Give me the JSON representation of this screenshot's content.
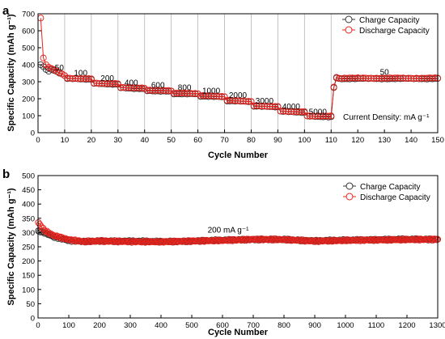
{
  "panels": [
    {
      "label": "a",
      "xlabel": "Cycle Number",
      "ylabel": "Specific Capacity (mAh g⁻¹)",
      "note": "Current Density: mA g⁻¹",
      "legend": [
        "Charge Capacity",
        "Discharge Capacity"
      ]
    },
    {
      "label": "b",
      "xlabel": "Cycle Number",
      "ylabel": "Specific Capacity (mAh g⁻¹)",
      "note": "200 mA g⁻¹",
      "legend": [
        "Charge Capacity",
        "Discharge Capacity"
      ]
    }
  ],
  "colors": {
    "charge": "#333333",
    "discharge": "#e8201a",
    "separator": "#b4b4b4"
  },
  "chart_data": [
    {
      "type": "scatter",
      "xlabel": "Cycle Number",
      "ylabel": "Specific Capacity (mAh g⁻¹)",
      "xlim": [
        0,
        150
      ],
      "ylim": [
        0,
        700
      ],
      "xticks": [
        0,
        10,
        20,
        30,
        40,
        50,
        60,
        70,
        80,
        90,
        100,
        110,
        120,
        130,
        140,
        150
      ],
      "yticks": [
        0,
        100,
        200,
        300,
        400,
        500,
        600,
        700
      ],
      "grid": "vertical separators at every 10 cycles",
      "legend_position": "top-right",
      "annotations": [
        {
          "text": "50",
          "x": 8,
          "y": 366
        },
        {
          "text": "100",
          "x": 16,
          "y": 335
        },
        {
          "text": "200",
          "x": 26,
          "y": 305
        },
        {
          "text": "400",
          "x": 35,
          "y": 278
        },
        {
          "text": "600",
          "x": 45,
          "y": 265
        },
        {
          "text": "800",
          "x": 55,
          "y": 250
        },
        {
          "text": "1000",
          "x": 65,
          "y": 232
        },
        {
          "text": "2000",
          "x": 75,
          "y": 205
        },
        {
          "text": "3000",
          "x": 85,
          "y": 172
        },
        {
          "text": "4000",
          "x": 95,
          "y": 138
        },
        {
          "text": "5000",
          "x": 105,
          "y": 108
        },
        {
          "text": "50",
          "x": 130,
          "y": 340
        }
      ],
      "rate_segments": [
        {
          "current_density": 50,
          "cycles": [
            1,
            10
          ],
          "start": 400,
          "end": 338
        },
        {
          "current_density": 100,
          "cycles": [
            11,
            20
          ],
          "start": 318,
          "end": 315
        },
        {
          "current_density": 200,
          "cycles": [
            21,
            30
          ],
          "start": 290,
          "end": 285
        },
        {
          "current_density": 400,
          "cycles": [
            31,
            40
          ],
          "start": 265,
          "end": 258
        },
        {
          "current_density": 600,
          "cycles": [
            41,
            50
          ],
          "start": 248,
          "end": 243
        },
        {
          "current_density": 800,
          "cycles": [
            51,
            60
          ],
          "start": 230,
          "end": 227
        },
        {
          "current_density": 1000,
          "cycles": [
            61,
            70
          ],
          "start": 215,
          "end": 210
        },
        {
          "current_density": 2000,
          "cycles": [
            71,
            80
          ],
          "start": 187,
          "end": 182
        },
        {
          "current_density": 3000,
          "cycles": [
            81,
            90
          ],
          "start": 155,
          "end": 152
        },
        {
          "current_density": 4000,
          "cycles": [
            91,
            100
          ],
          "start": 125,
          "end": 120
        },
        {
          "current_density": 5000,
          "cycles": [
            101,
            110
          ],
          "start": 97,
          "end": 94
        },
        {
          "current_density": 50,
          "cycles": [
            111,
            150
          ],
          "start": 318,
          "end": 318
        }
      ],
      "first_cycles_discharge": [
        {
          "x": 1,
          "y": 675
        },
        {
          "x": 2,
          "y": 440
        },
        {
          "x": 3,
          "y": 400
        },
        {
          "x": 4,
          "y": 385
        }
      ],
      "first_cycles_charge": [
        {
          "x": 1,
          "y": 400
        },
        {
          "x": 2,
          "y": 388
        },
        {
          "x": 3,
          "y": 372
        },
        {
          "x": 4,
          "y": 362
        }
      ],
      "recovery_points": [
        {
          "x": 111,
          "y": 265
        },
        {
          "x": 112,
          "y": 322
        }
      ],
      "series": [
        {
          "name": "Charge Capacity",
          "color": "#333333",
          "marker": "open circle"
        },
        {
          "name": "Discharge Capacity",
          "color": "#e8201a",
          "marker": "open circle"
        }
      ]
    },
    {
      "type": "scatter",
      "xlabel": "Cycle Number",
      "ylabel": "Specific Capacity (mAh g⁻¹)",
      "xlim": [
        0,
        1300
      ],
      "ylim": [
        0,
        500
      ],
      "xticks": [
        0,
        100,
        200,
        300,
        400,
        500,
        600,
        700,
        800,
        900,
        1000,
        1100,
        1200,
        1300
      ],
      "yticks": [
        0,
        50,
        100,
        150,
        200,
        250,
        300,
        350,
        400,
        450,
        500
      ],
      "legend_position": "top-right",
      "annotations": [
        {
          "text": "200 mA g⁻¹",
          "x": 650,
          "y": 300
        }
      ],
      "series": [
        {
          "name": "Charge Capacity",
          "color": "#333333",
          "marker": "open circle",
          "points": [
            [
              1,
              305
            ],
            [
              20,
              300
            ],
            [
              50,
              285
            ],
            [
              100,
              272
            ],
            [
              150,
              268
            ],
            [
              200,
              270
            ],
            [
              300,
              270
            ],
            [
              400,
              268
            ],
            [
              500,
              270
            ],
            [
              600,
              273
            ],
            [
              700,
              276
            ],
            [
              800,
              275
            ],
            [
              900,
              271
            ],
            [
              1000,
              273
            ],
            [
              1100,
              275
            ],
            [
              1200,
              276
            ],
            [
              1300,
              276
            ]
          ]
        },
        {
          "name": "Discharge Capacity",
          "color": "#e8201a",
          "marker": "open circle",
          "points": [
            [
              1,
              335
            ],
            [
              20,
              308
            ],
            [
              50,
              290
            ],
            [
              100,
              275
            ],
            [
              150,
              268
            ],
            [
              200,
              270
            ],
            [
              300,
              268
            ],
            [
              400,
              267
            ],
            [
              500,
              270
            ],
            [
              600,
              272
            ],
            [
              700,
              276
            ],
            [
              800,
              275
            ],
            [
              900,
              270
            ],
            [
              1000,
              272
            ],
            [
              1100,
              274
            ],
            [
              1200,
              275
            ],
            [
              1300,
              276
            ]
          ]
        }
      ]
    }
  ]
}
